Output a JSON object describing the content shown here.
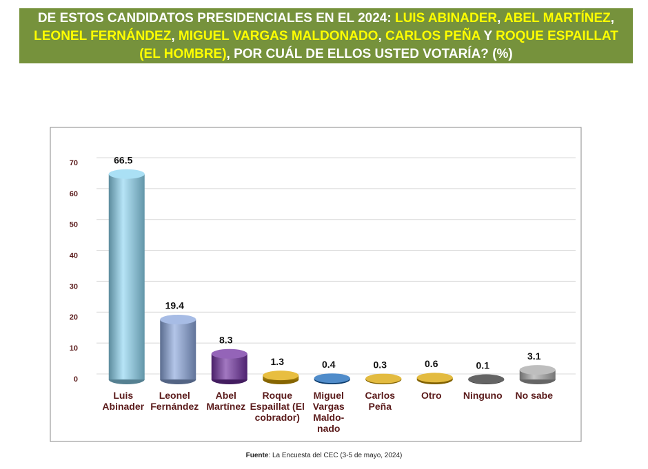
{
  "header": {
    "title_parts": [
      {
        "text": "DE ESTOS CANDIDATOS PRESIDENCIALES EN EL 2024: ",
        "highlight": false
      },
      {
        "text": "LUIS ABINADER",
        "highlight": true
      },
      {
        "text": ", ",
        "highlight": false
      },
      {
        "text": "ABEL MARTÍNEZ",
        "highlight": true
      },
      {
        "text": ", ",
        "highlight": false
      },
      {
        "text": "LEONEL FERNÁNDEZ",
        "highlight": true
      },
      {
        "text": ", ",
        "highlight": false
      },
      {
        "text": "MIGUEL VARGAS MALDONADO",
        "highlight": true
      },
      {
        "text": ", ",
        "highlight": false
      },
      {
        "text": "CARLOS PEÑA",
        "highlight": true
      },
      {
        "text": " Y ",
        "highlight": false
      },
      {
        "text": "ROQUE ESPAILLAT (EL HOMBRE)",
        "highlight": true
      },
      {
        "text": ", POR CUÁL DE ELLOS USTED VOTARÍA? (%)",
        "highlight": false
      }
    ]
  },
  "chart_data": {
    "type": "bar",
    "categories": [
      "Luis\nAbinader",
      "Leonel\nFernández",
      "Abel\nMartínez",
      "Roque\nEspaillat (El\ncobrador)",
      "Miguel\nVargas\nMaldo-\nnado",
      "Carlos\nPeña",
      "Otro",
      "Ninguno",
      "No sabe"
    ],
    "values": [
      66.5,
      19.4,
      8.3,
      1.3,
      0.4,
      0.3,
      0.6,
      0.1,
      3.1
    ],
    "colors": [
      "#8ed6f2",
      "#8aa6dc",
      "#7030a0",
      "#e0a800",
      "#1565b8",
      "#d9a400",
      "#d9a400",
      "#303030",
      "#a8a8a8"
    ],
    "ylim": [
      0,
      70
    ],
    "yticks": [
      0,
      10,
      20,
      30,
      40,
      50,
      60,
      70
    ],
    "grid": true,
    "source_label": "Fuente",
    "source_text": ": La Encuesta del CEC (3-5 de mayo, 2024)"
  }
}
